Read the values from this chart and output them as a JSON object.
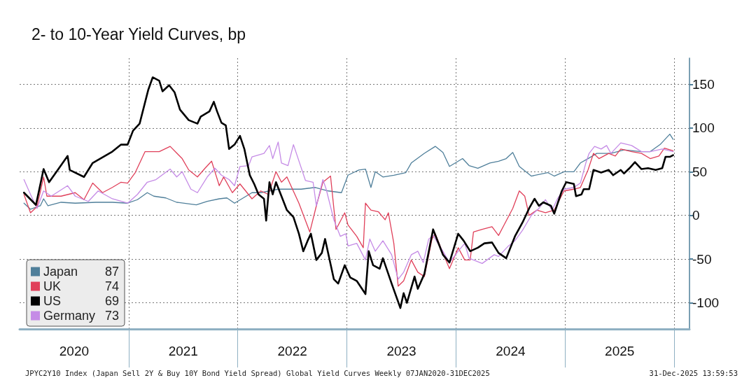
{
  "chart_data": {
    "type": "line",
    "title": "2- to 10-Year Yield Curves, bp",
    "series": [
      {
        "name": "Japan",
        "color": "#4f7f9a",
        "x": [
          2020.04,
          2020.1,
          2020.19,
          2020.22,
          2020.26,
          2020.38,
          2020.51,
          2020.7,
          2020.85,
          2020.99,
          2021.08,
          2021.17,
          2021.23,
          2021.34,
          2021.44,
          2021.62,
          2021.72,
          2021.83,
          2021.9,
          2021.97,
          2022.13,
          2022.21,
          2022.37,
          2022.58,
          2022.71,
          2022.83,
          2022.95,
          2023.01,
          2023.11,
          2023.17,
          2023.22,
          2023.26,
          2023.33,
          2023.43,
          2023.54,
          2023.59,
          2023.71,
          2023.81,
          2023.88,
          2023.94,
          2024.06,
          2024.12,
          2024.2,
          2024.31,
          2024.39,
          2024.46,
          2024.52,
          2024.58,
          2024.69,
          2024.84,
          2024.9,
          2024.99,
          2025.08,
          2025.14,
          2025.21,
          2025.29,
          2025.42,
          2025.54,
          2025.7,
          2025.78,
          2025.87,
          2025.96,
          2025.99
        ],
        "values": [
          14,
          7,
          11,
          19,
          11,
          15,
          14,
          15,
          15,
          14,
          18,
          26,
          22,
          20,
          15,
          12,
          16,
          19,
          20,
          14,
          26,
          26,
          30,
          30,
          32,
          28,
          26,
          46,
          52,
          53,
          32,
          50,
          44,
          46,
          49,
          60,
          71,
          79,
          72,
          56,
          65,
          57,
          54,
          60,
          62,
          65,
          72,
          56,
          45,
          49,
          45,
          50,
          50,
          60,
          65,
          71,
          71,
          75,
          73,
          73,
          81,
          93,
          87
        ]
      },
      {
        "name": "UK",
        "color": "#e0405a",
        "x": [
          2020.04,
          2020.1,
          2020.16,
          2020.22,
          2020.25,
          2020.38,
          2020.51,
          2020.59,
          2020.67,
          2020.76,
          2020.85,
          2020.93,
          2020.99,
          2021.06,
          2021.15,
          2021.21,
          2021.28,
          2021.38,
          2021.49,
          2021.55,
          2021.63,
          2021.7,
          2021.76,
          2021.83,
          2021.87,
          2021.95,
          2022.02,
          2022.13,
          2022.21,
          2022.28,
          2022.35,
          2022.4,
          2022.45,
          2022.56,
          2022.66,
          2022.72,
          2022.78,
          2022.85,
          2022.9,
          2022.98,
          2023.01,
          2023.09,
          2023.15,
          2023.17,
          2023.22,
          2023.29,
          2023.35,
          2023.38,
          2023.43,
          2023.47,
          2023.52,
          2023.59,
          2023.65,
          2023.71,
          2023.78,
          2023.81,
          2023.88,
          2023.94,
          2024.02,
          2024.08,
          2024.13,
          2024.16,
          2024.24,
          2024.33,
          2024.39,
          2024.44,
          2024.52,
          2024.58,
          2024.63,
          2024.67,
          2024.74,
          2024.82,
          2024.9,
          2024.99,
          2025.08,
          2025.14,
          2025.21,
          2025.26,
          2025.31,
          2025.4,
          2025.46,
          2025.51,
          2025.61,
          2025.7,
          2025.78,
          2025.86,
          2025.91,
          2025.99
        ],
        "values": [
          24,
          3,
          10,
          44,
          22,
          22,
          26,
          18,
          37,
          26,
          32,
          38,
          37,
          49,
          73,
          73,
          73,
          79,
          65,
          52,
          44,
          54,
          62,
          34,
          44,
          26,
          36,
          19,
          28,
          24,
          50,
          38,
          44,
          14,
          -19,
          11,
          38,
          45,
          -16,
          3,
          -11,
          -24,
          -37,
          14,
          6,
          4,
          -5,
          3,
          -32,
          -81,
          -75,
          -51,
          -65,
          -70,
          -27,
          -21,
          -43,
          -61,
          -37,
          -51,
          -51,
          -19,
          -16,
          -13,
          -23,
          -11,
          8,
          28,
          22,
          0,
          6,
          3,
          6,
          28,
          30,
          32,
          52,
          71,
          65,
          71,
          68,
          76,
          73,
          71,
          65,
          68,
          77,
          74
        ]
      },
      {
        "name": "US",
        "color": "#000000",
        "x": [
          2020.04,
          2020.15,
          2020.22,
          2020.27,
          2020.35,
          2020.44,
          2020.46,
          2020.59,
          2020.67,
          2020.85,
          2020.93,
          2020.99,
          2021.04,
          2021.1,
          2021.18,
          2021.22,
          2021.28,
          2021.31,
          2021.37,
          2021.42,
          2021.47,
          2021.55,
          2021.63,
          2021.66,
          2021.74,
          2021.78,
          2021.81,
          2021.85,
          2021.89,
          2021.92,
          2021.97,
          2022.02,
          2022.06,
          2022.11,
          2022.15,
          2022.19,
          2022.24,
          2022.26,
          2022.29,
          2022.32,
          2022.35,
          2022.4,
          2022.45,
          2022.51,
          2022.56,
          2022.6,
          2022.64,
          2022.67,
          2022.72,
          2022.77,
          2022.8,
          2022.88,
          2022.92,
          2022.98,
          2023.03,
          2023.09,
          2023.17,
          2023.2,
          2023.24,
          2023.3,
          2023.33,
          2023.41,
          2023.49,
          2023.52,
          2023.55,
          2023.62,
          2023.65,
          2023.71,
          2023.79,
          2023.84,
          2023.88,
          2023.94,
          2024.02,
          2024.07,
          2024.13,
          2024.2,
          2024.26,
          2024.33,
          2024.39,
          2024.46,
          2024.54,
          2024.61,
          2024.67,
          2024.72,
          2024.76,
          2024.8,
          2024.87,
          2024.9,
          2024.97,
          2025.01,
          2025.08,
          2025.1,
          2025.15,
          2025.17,
          2025.22,
          2025.26,
          2025.33,
          2025.4,
          2025.44,
          2025.51,
          2025.54,
          2025.59,
          2025.64,
          2025.7,
          2025.76,
          2025.83,
          2025.89,
          2025.92,
          2025.96,
          2025.99
        ],
        "values": [
          26,
          12,
          53,
          38,
          52,
          68,
          52,
          44,
          60,
          73,
          81,
          81,
          97,
          105,
          144,
          158,
          154,
          142,
          149,
          141,
          121,
          109,
          105,
          113,
          119,
          130,
          119,
          106,
          103,
          76,
          81,
          91,
          76,
          46,
          36,
          24,
          19,
          -6,
          38,
          24,
          38,
          22,
          6,
          -2,
          -21,
          -41,
          -29,
          -21,
          -51,
          -43,
          -27,
          -73,
          -78,
          -57,
          -71,
          -75,
          -90,
          -41,
          -57,
          -61,
          -49,
          -78,
          -106,
          -89,
          -100,
          -70,
          -84,
          -67,
          -16,
          -32,
          -45,
          -54,
          -21,
          -29,
          -41,
          -37,
          -32,
          -31,
          -43,
          -49,
          -24,
          -8,
          8,
          19,
          11,
          15,
          11,
          2,
          28,
          38,
          36,
          22,
          24,
          30,
          30,
          52,
          49,
          52,
          46,
          52,
          48,
          54,
          61,
          53,
          54,
          52,
          54,
          67,
          67,
          69
        ]
      },
      {
        "name": "Germany",
        "color": "#c58be6",
        "x": [
          2020.04,
          2020.1,
          2020.16,
          2020.22,
          2020.29,
          2020.44,
          2020.51,
          2020.63,
          2020.72,
          2020.85,
          2020.99,
          2021.08,
          2021.17,
          2021.25,
          2021.38,
          2021.44,
          2021.49,
          2021.57,
          2021.63,
          2021.72,
          2021.79,
          2021.85,
          2021.92,
          2021.97,
          2022.02,
          2022.1,
          2022.13,
          2022.24,
          2022.29,
          2022.32,
          2022.37,
          2022.4,
          2022.46,
          2022.51,
          2022.62,
          2022.69,
          2022.72,
          2022.78,
          2022.81,
          2022.88,
          2022.94,
          2022.99,
          2023.01,
          2023.09,
          2023.17,
          2023.21,
          2023.26,
          2023.33,
          2023.41,
          2023.47,
          2023.52,
          2023.59,
          2023.65,
          2023.7,
          2023.75,
          2023.79,
          2023.88,
          2023.94,
          2024.02,
          2024.08,
          2024.12,
          2024.24,
          2024.35,
          2024.39,
          2024.48,
          2024.54,
          2024.61,
          2024.69,
          2024.76,
          2024.82,
          2024.88,
          2024.93,
          2024.99,
          2025.08,
          2025.14,
          2025.19,
          2025.22,
          2025.27,
          2025.33,
          2025.38,
          2025.42,
          2025.51,
          2025.61,
          2025.7,
          2025.78,
          2025.89,
          2025.99
        ],
        "values": [
          41,
          24,
          8,
          28,
          22,
          34,
          22,
          16,
          28,
          19,
          14,
          24,
          38,
          41,
          53,
          44,
          50,
          30,
          26,
          44,
          54,
          46,
          41,
          34,
          56,
          57,
          67,
          71,
          80,
          65,
          84,
          60,
          57,
          81,
          40,
          38,
          11,
          41,
          30,
          -5,
          -24,
          -21,
          -35,
          -32,
          -51,
          -27,
          -41,
          -29,
          -45,
          -73,
          -65,
          -45,
          -41,
          -54,
          -27,
          -23,
          -41,
          -54,
          -41,
          -32,
          -49,
          -55,
          -45,
          -47,
          -35,
          -29,
          -17,
          0,
          8,
          18,
          6,
          19,
          30,
          32,
          37,
          60,
          71,
          79,
          76,
          80,
          71,
          83,
          80,
          73,
          73,
          76,
          73
        ]
      }
    ],
    "xlim": [
      2020,
      2026.14
    ],
    "xticks": [
      {
        "value": 2020.5,
        "label": "2020"
      },
      {
        "value": 2021,
        "label": null
      },
      {
        "value": 2021.5,
        "label": "2021"
      },
      {
        "value": 2022,
        "label": null
      },
      {
        "value": 2022.5,
        "label": "2022"
      },
      {
        "value": 2023,
        "label": null
      },
      {
        "value": 2023.5,
        "label": "2023"
      },
      {
        "value": 2024,
        "label": null
      },
      {
        "value": 2024.5,
        "label": "2024"
      },
      {
        "value": 2025,
        "label": null
      },
      {
        "value": 2025.5,
        "label": "2025"
      },
      {
        "value": 2026,
        "label": null
      }
    ],
    "ylim": [
      -130,
      180
    ],
    "yticks": [
      -100,
      -50,
      0,
      50,
      100,
      150
    ],
    "grid": true,
    "legend": "bottom left",
    "marker": "none",
    "line_style": "solid",
    "annotations": [
      "JPYC2Y10 Index (Japan Sell 2Y & Buy 10Y Bond Yield Spread) Global Yield Curves Weekly 07JAN2020-31DEC2025",
      "31-Dec-2025 13:59:53",
      "87",
      "74",
      "69",
      "73"
    ]
  }
}
